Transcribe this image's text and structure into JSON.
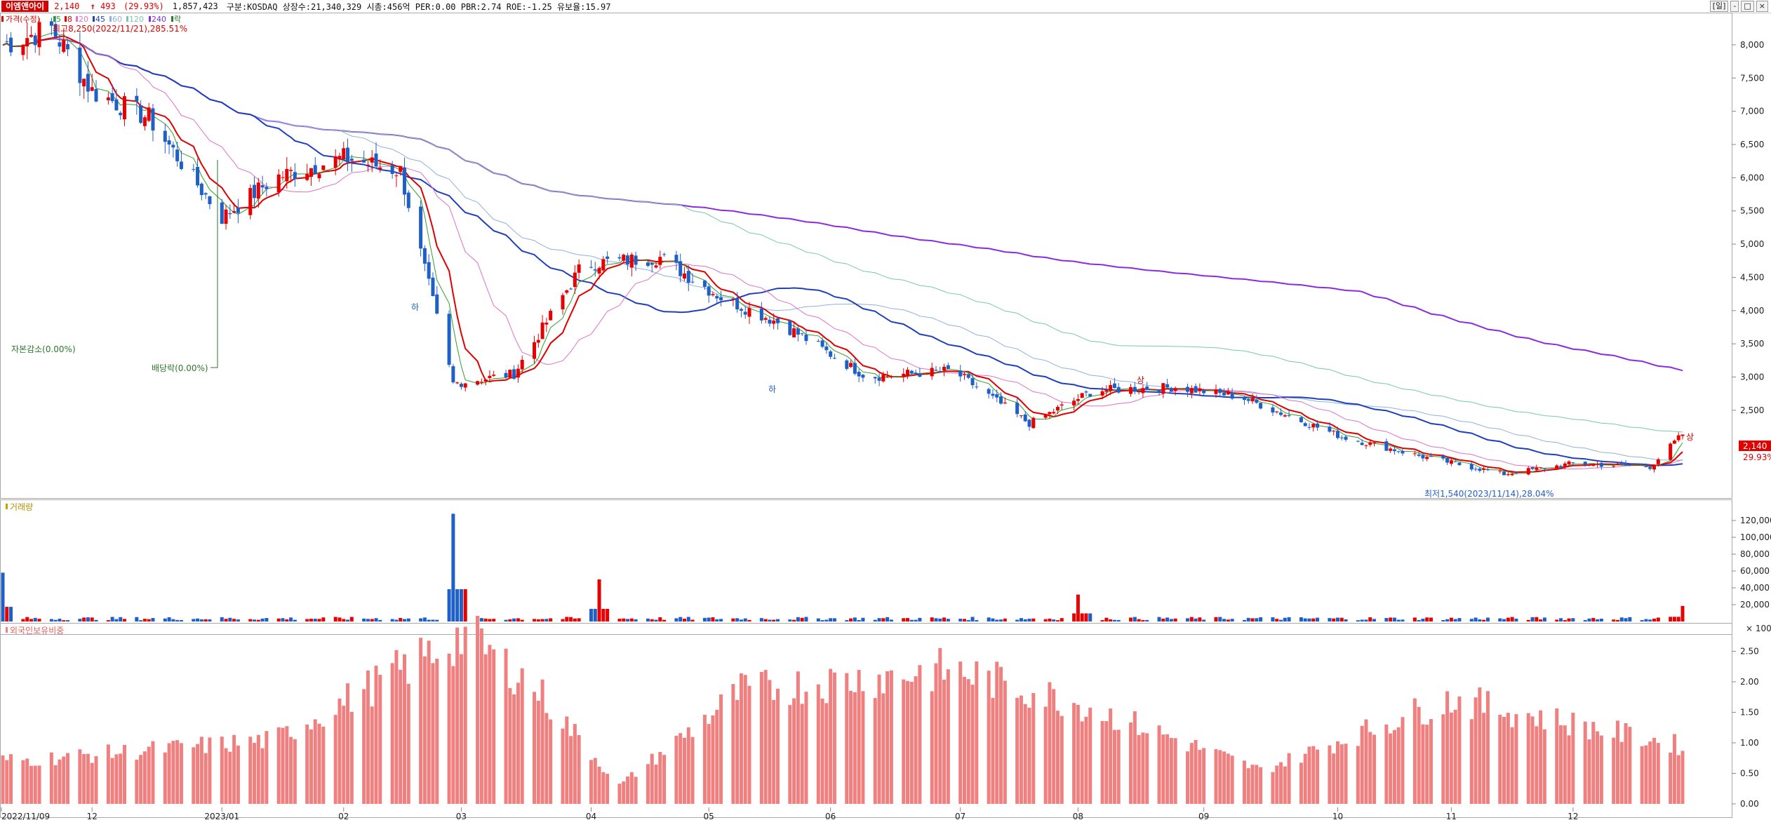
{
  "header": {
    "stock_name": "이엠앤아이",
    "price": "2,140",
    "change_arrow": "↑",
    "change": "493",
    "change_pct": "(29.93%)",
    "volume": "1,857,423",
    "info": "구분:KOSDAQ 상장수:21,340,329 시총:456억 PER:0.00 PBR:2.74 ROE:-1.25 유보율:15.97",
    "period_button": "[일]",
    "window_controls": [
      "-",
      "□",
      "×"
    ]
  },
  "legend": {
    "price_label": "가격(수정)",
    "ma": [
      {
        "period": "5",
        "color": "#2ca02c"
      },
      {
        "period": "8",
        "color": "#e00000"
      },
      {
        "period": "20",
        "color": "#e070c8"
      },
      {
        "period": "45",
        "color": "#1f3fbf"
      },
      {
        "period": "60",
        "color": "#8fb0e0"
      },
      {
        "period": "120",
        "color": "#77c9a8"
      },
      {
        "period": "240",
        "color": "#8a2be2"
      }
    ],
    "tail": "락",
    "volume_label": "거래량",
    "foreign_label": "외국인보유비중"
  },
  "annotations": {
    "high": "최고8,250(2022/11/21),285.51%",
    "low": "최저1,540(2023/11/14),28.04%",
    "capital_reduction": "자본감소(0.00%)",
    "dividend": "배당락(0.00%)",
    "limit_down": "하",
    "limit_up": "상",
    "last_price_tag": "2,140",
    "last_pct_tag": "29.93%"
  },
  "x_axis_labels": [
    "2022/11/09",
    "12",
    "2023/01",
    "02",
    "03",
    "04",
    "05",
    "06",
    "07",
    "08",
    "09",
    "10",
    "11",
    "12"
  ],
  "colors": {
    "up": "#e60000",
    "down": "#1f5fc8",
    "ma240": "#8a2be2",
    "ma120": "#77c9a8",
    "ma60": "#8fb0e0",
    "ma45": "#1f3fbf",
    "ma20": "#e070c8",
    "ma8": "#e00000",
    "ma5": "#2ca02c",
    "foreign": "#f08080"
  },
  "chart_data": [
    {
      "type": "candlestick",
      "title": "가격(수정)",
      "y_ticks": [
        "8,000",
        "7,500",
        "7,000",
        "6,500",
        "6,000",
        "5,500",
        "5,000",
        "4,500",
        "4,000",
        "3,500",
        "3,000",
        "2,500"
      ],
      "ylim": [
        1200,
        8400
      ],
      "points": [
        {
          "date": "2022/11/09",
          "close": 8000
        },
        {
          "date": "2022/11/21",
          "close": 8250
        },
        {
          "date": "2022/12/01",
          "close": 7300
        },
        {
          "date": "2022/12/15",
          "close": 6900
        },
        {
          "date": "2023/01/02",
          "close": 5400
        },
        {
          "date": "2023/01/15",
          "close": 6000
        },
        {
          "date": "2023/02/01",
          "close": 6300
        },
        {
          "date": "2023/02/15",
          "close": 6100
        },
        {
          "date": "2023/02/28",
          "close": 2900
        },
        {
          "date": "2023/03/15",
          "close": 3050
        },
        {
          "date": "2023/04/01",
          "close": 4700
        },
        {
          "date": "2023/04/20",
          "close": 4800
        },
        {
          "date": "2023/05/05",
          "close": 4200
        },
        {
          "date": "2023/05/20",
          "close": 3800
        },
        {
          "date": "2023/06/10",
          "close": 3000
        },
        {
          "date": "2023/07/01",
          "close": 3100
        },
        {
          "date": "2023/07/20",
          "close": 2300
        },
        {
          "date": "2023/08/05",
          "close": 2800
        },
        {
          "date": "2023/08/25",
          "close": 2850
        },
        {
          "date": "2023/09/10",
          "close": 2700
        },
        {
          "date": "2023/10/05",
          "close": 2100
        },
        {
          "date": "2023/10/25",
          "close": 1800
        },
        {
          "date": "2023/11/14",
          "close": 1540
        },
        {
          "date": "2023/12/01",
          "close": 1700
        },
        {
          "date": "2023/12/20",
          "close": 1650
        },
        {
          "date": "2023/12/28",
          "close": 2140
        }
      ]
    },
    {
      "type": "bar",
      "title": "거래량",
      "y_ticks": [
        "120,000",
        "100,000",
        "80,000",
        "60,000",
        "40,000",
        "20,000"
      ],
      "y_unit": "× 100",
      "ylim": [
        0,
        140000
      ],
      "values": [
        {
          "date": "2022/11/09",
          "value": 58000
        },
        {
          "date": "2023/02/28",
          "value": 128000
        },
        {
          "date": "2023/04/05",
          "value": 50000
        },
        {
          "date": "2023/08/01",
          "value": 32000
        },
        {
          "date": "2023/12/28",
          "value": 18500
        }
      ]
    },
    {
      "type": "bar",
      "title": "외국인보유비중",
      "y_ticks": [
        "2.50",
        "2.00",
        "1.50",
        "1.00",
        "0.50",
        "0.00"
      ],
      "ylim": [
        0,
        2.85
      ],
      "values": [
        {
          "date": "2022/11/15",
          "value": 0.72
        },
        {
          "date": "2023/01/15",
          "value": 1.05
        },
        {
          "date": "2023/03/03",
          "value": 2.78
        },
        {
          "date": "2023/03/20",
          "value": 1.92
        },
        {
          "date": "2023/04/10",
          "value": 0.3
        },
        {
          "date": "2023/05/10",
          "value": 1.85
        },
        {
          "date": "2023/07/01",
          "value": 2.2
        },
        {
          "date": "2023/08/01",
          "value": 1.65
        },
        {
          "date": "2023/09/15",
          "value": 0.55
        },
        {
          "date": "2023/11/01",
          "value": 1.72
        },
        {
          "date": "2023/12/28",
          "value": 0.95
        }
      ]
    }
  ]
}
